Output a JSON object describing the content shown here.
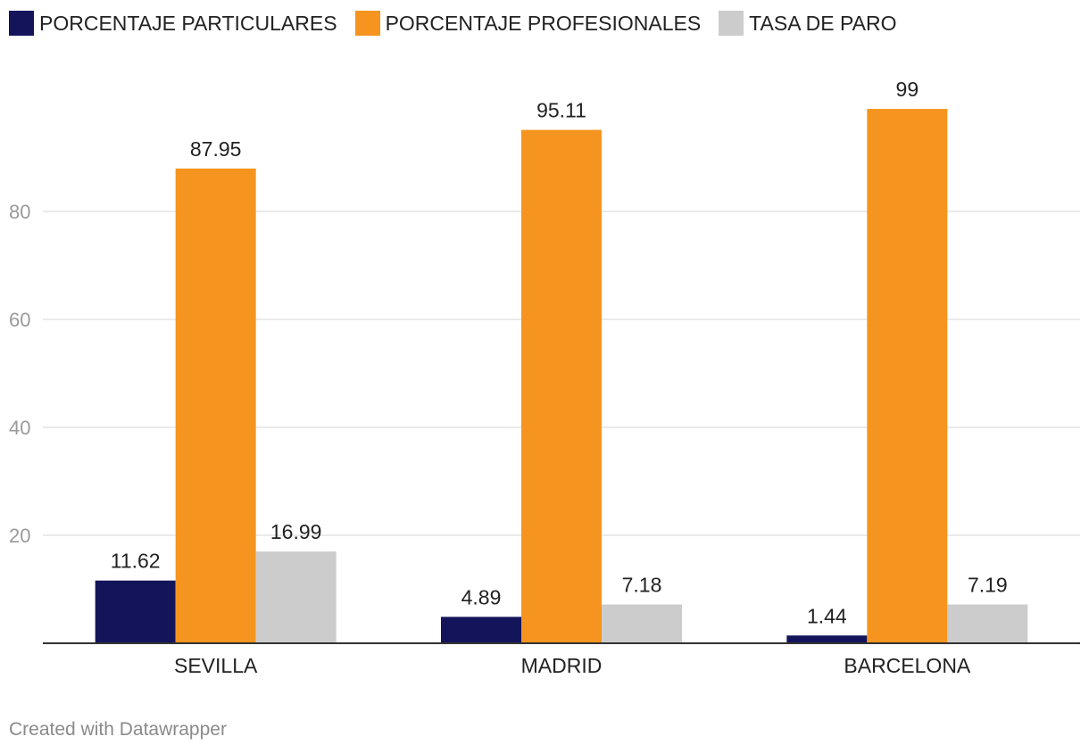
{
  "chart_data": {
    "type": "bar",
    "categories": [
      "SEVILLA",
      "MADRID",
      "BARCELONA"
    ],
    "series": [
      {
        "name": "PORCENTAJE PARTICULARES",
        "color": "#13145a",
        "values": [
          11.62,
          4.89,
          1.44
        ]
      },
      {
        "name": "PORCENTAJE PROFESIONALES",
        "color": "#f5951f",
        "values": [
          87.95,
          95.11,
          99
        ]
      },
      {
        "name": "TASA DE PARO",
        "color": "#cccccc",
        "values": [
          16.99,
          7.18,
          7.19
        ]
      }
    ],
    "yticks": [
      20,
      40,
      60,
      80
    ],
    "ylim": [
      0,
      100
    ],
    "title": "",
    "xlabel": "",
    "ylabel": "",
    "legend_position": "top-left",
    "grid": true
  },
  "footer": {
    "credit": "Created with Datawrapper"
  }
}
